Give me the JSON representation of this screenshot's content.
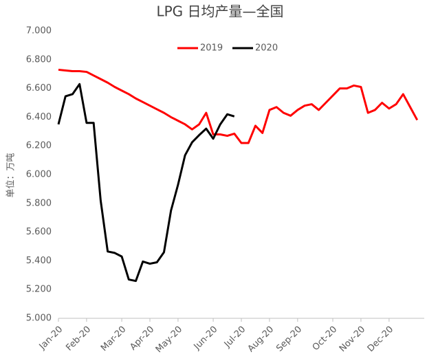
{
  "chart_data": {
    "type": "line",
    "title": "LPG 日均产量—全国",
    "y_label": "单位：万吨",
    "categories": [
      "Jan-20",
      null,
      null,
      null,
      "Feb-20",
      null,
      null,
      null,
      null,
      "Mar-20",
      null,
      null,
      null,
      "Apr-20",
      null,
      null,
      null,
      "May-20",
      null,
      null,
      null,
      null,
      "Jun-20",
      null,
      null,
      null,
      "Jul-20",
      null,
      null,
      null,
      "Aug-20",
      null,
      null,
      null,
      "Sep-20",
      null,
      null,
      null,
      null,
      "Oct-20",
      null,
      null,
      null,
      "Nov-20",
      null,
      null,
      null,
      "Dec-20",
      null,
      null,
      null,
      null
    ],
    "series": [
      {
        "name": "2019",
        "color": "#ff0000",
        "values": [
          6.73,
          6.725,
          6.72,
          6.72,
          6.715,
          6.69,
          6.665,
          6.64,
          6.61,
          6.585,
          6.56,
          6.53,
          6.505,
          6.48,
          6.455,
          6.43,
          6.4,
          6.375,
          6.35,
          6.315,
          6.35,
          6.43,
          6.28,
          6.28,
          6.27,
          6.285,
          6.22,
          6.22,
          6.34,
          6.29,
          6.45,
          6.47,
          6.43,
          6.41,
          6.45,
          6.48,
          6.49,
          6.45,
          6.5,
          6.55,
          6.6,
          6.6,
          6.62,
          6.61,
          6.43,
          6.45,
          6.5,
          6.46,
          6.49,
          6.56,
          6.47,
          6.38
        ]
      },
      {
        "name": "2020",
        "color": "#000000",
        "values": [
          6.35,
          6.545,
          6.56,
          6.63,
          6.36,
          6.36,
          5.82,
          5.465,
          5.455,
          5.43,
          5.27,
          5.26,
          5.395,
          5.38,
          5.39,
          5.46,
          5.75,
          5.93,
          6.135,
          6.225,
          6.275,
          6.32,
          6.25,
          6.35,
          6.42,
          6.405,
          null,
          null,
          null,
          null,
          null,
          null,
          null,
          null,
          null,
          null,
          null,
          null,
          null,
          null,
          null,
          null,
          null,
          null,
          null,
          null,
          null,
          null,
          null,
          null,
          null,
          null
        ]
      }
    ],
    "ylim": [
      5,
      7
    ],
    "yticks": [
      {
        "value": 5,
        "label": "5.000"
      },
      {
        "value": 5.2,
        "label": "5.200"
      },
      {
        "value": 5.4,
        "label": "5.400"
      },
      {
        "value": 5.6,
        "label": "5.600"
      },
      {
        "value": 5.8,
        "label": "5.800"
      },
      {
        "value": 6,
        "label": "6.000"
      },
      {
        "value": 6.2,
        "label": "6.200"
      },
      {
        "value": 6.4,
        "label": "6.400"
      },
      {
        "value": 6.6,
        "label": "6.600"
      },
      {
        "value": 6.8,
        "label": "6.800"
      },
      {
        "value": 7,
        "label": "7.000"
      }
    ],
    "grid": false,
    "legend": "top"
  }
}
